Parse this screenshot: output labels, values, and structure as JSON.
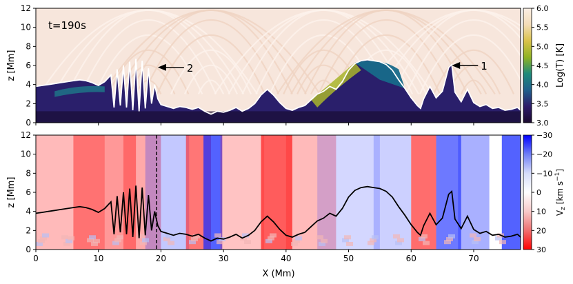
{
  "chart_data": [
    {
      "type": "heatmap",
      "panel": "temperature",
      "variable": "Log(T) [K]",
      "annotation_time": "t=190s",
      "xlim": [
        0,
        77.5
      ],
      "ylim": [
        0,
        12
      ],
      "ylabel": "z [Mm]",
      "yticks": [
        0,
        2,
        4,
        6,
        8,
        10,
        12
      ],
      "colorbar": {
        "label": "Log(T) [K]",
        "range": [
          3.0,
          6.0
        ],
        "ticks": [
          "3.0",
          "3.5",
          "4.0",
          "4.5",
          "5.0",
          "5.5",
          "6.0"
        ],
        "colormap_stops": [
          "#1b0a2e",
          "#2d1b69",
          "#1f5f8b",
          "#1e8a7a",
          "#8fb224",
          "#d9c24a",
          "#f3dcb8",
          "#fbeee4"
        ]
      },
      "annotations": [
        {
          "label": "1",
          "x": 66.5,
          "z": 6.0
        },
        {
          "label": "2",
          "x": 19.5,
          "z": 5.8
        }
      ],
      "contour_x": [
        0,
        1,
        2,
        3,
        4,
        5,
        6,
        7,
        8,
        9,
        10,
        11,
        12,
        12.5,
        13,
        13.5,
        14,
        14.5,
        15,
        15.5,
        16,
        16.5,
        17,
        17.5,
        18,
        18.5,
        19,
        19.5,
        20,
        21,
        22,
        23,
        24,
        25,
        26,
        27,
        28,
        29,
        30,
        31,
        32,
        33,
        34,
        35,
        36,
        37,
        38,
        39,
        40,
        41,
        42,
        43,
        44,
        45,
        46,
        47,
        48,
        49,
        50,
        51,
        52,
        53,
        54,
        55,
        56,
        57,
        58,
        59,
        60,
        61,
        61.5,
        62,
        63,
        64,
        65,
        66,
        66.5,
        67,
        68,
        69,
        70,
        71,
        72,
        73,
        74,
        75,
        76,
        77,
        77.5
      ],
      "contour_z": [
        3.8,
        3.9,
        4.0,
        4.1,
        4.2,
        4.3,
        4.4,
        4.5,
        4.4,
        4.2,
        3.9,
        4.3,
        5.0,
        1.6,
        5.6,
        1.8,
        6.0,
        1.6,
        6.4,
        1.3,
        6.7,
        1.2,
        6.5,
        1.5,
        5.7,
        2.0,
        4.0,
        2.5,
        1.9,
        1.7,
        1.5,
        1.7,
        1.6,
        1.4,
        1.6,
        1.2,
        0.9,
        1.2,
        1.1,
        1.3,
        1.6,
        1.2,
        1.5,
        2.0,
        2.9,
        3.5,
        2.9,
        2.1,
        1.5,
        1.3,
        1.6,
        1.8,
        2.4,
        3.0,
        3.3,
        3.8,
        3.5,
        4.3,
        5.5,
        6.2,
        6.5,
        6.6,
        6.5,
        6.4,
        6.1,
        5.5,
        4.5,
        3.6,
        2.6,
        1.8,
        1.5,
        2.5,
        3.8,
        2.6,
        3.3,
        5.8,
        6.1,
        3.2,
        2.2,
        3.5,
        2.1,
        1.7,
        1.9,
        1.5,
        1.6,
        1.3,
        1.4,
        1.6,
        1.3
      ]
    },
    {
      "type": "heatmap",
      "panel": "vertical velocity",
      "variable": "V_z [km s^-1]",
      "xlim": [
        0,
        77.5
      ],
      "ylim": [
        0,
        12
      ],
      "xlabel": "X (Mm)",
      "ylabel": "z [Mm]",
      "xticks": [
        0,
        10,
        20,
        30,
        40,
        50,
        60,
        70
      ],
      "yticks": [
        0,
        2,
        4,
        6,
        8,
        10,
        12
      ],
      "reference_line_x": 19.3,
      "colorbar": {
        "label": "V_z [km s^-1]",
        "range": [
          30,
          -30
        ],
        "ticks": [
          "−30",
          "−20",
          "−10",
          "0",
          "10",
          "20",
          "30"
        ],
        "colormap_stops": [
          "#0000ff",
          "#6f7ef5",
          "#d6dcfa",
          "#ffffff",
          "#f6c9c9",
          "#ef6f6f",
          "#ff0000"
        ]
      },
      "bands": [
        {
          "x": 4,
          "sign": 1,
          "strength": 0.4,
          "width": 14
        },
        {
          "x": 11,
          "sign": 1,
          "strength": 0.6,
          "width": 10
        },
        {
          "x": 17,
          "sign": 1,
          "strength": 0.5,
          "width": 6
        },
        {
          "x": 21,
          "sign": -1,
          "strength": 0.35,
          "width": 7
        },
        {
          "x": 26,
          "sign": 1,
          "strength": 0.8,
          "width": 4
        },
        {
          "x": 28.3,
          "sign": -1,
          "strength": 1.0,
          "width": 3
        },
        {
          "x": 33,
          "sign": 1,
          "strength": 0.35,
          "width": 7
        },
        {
          "x": 38.5,
          "sign": 1,
          "strength": 0.95,
          "width": 5
        },
        {
          "x": 44,
          "sign": 1,
          "strength": 0.4,
          "width": 8
        },
        {
          "x": 50,
          "sign": -1,
          "strength": 0.25,
          "width": 10
        },
        {
          "x": 57,
          "sign": -1,
          "strength": 0.3,
          "width": 6
        },
        {
          "x": 62,
          "sign": 1,
          "strength": 0.85,
          "width": 4
        },
        {
          "x": 66,
          "sign": -1,
          "strength": 0.85,
          "width": 4
        },
        {
          "x": 70,
          "sign": -1,
          "strength": 0.5,
          "width": 5
        },
        {
          "x": 76,
          "sign": -1,
          "strength": 1.0,
          "width": 3
        }
      ]
    }
  ]
}
